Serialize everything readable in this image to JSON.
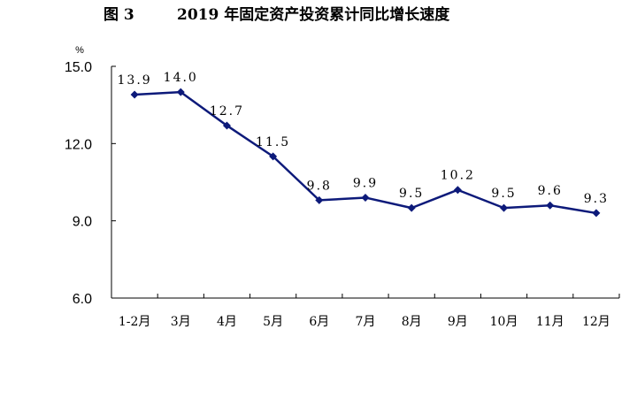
{
  "figure": {
    "label": "图 3",
    "title": "2019 年固定资产投资累计同比增长速度"
  },
  "chart_data": {
    "type": "line",
    "title": "2019 年固定资产投资累计同比增长速度",
    "ylabel": "%",
    "xlabel": "",
    "categories": [
      "1-2月",
      "3月",
      "4月",
      "5月",
      "6月",
      "7月",
      "8月",
      "9月",
      "10月",
      "11月",
      "12月"
    ],
    "series": [
      {
        "values": [
          13.9,
          14.0,
          12.7,
          11.5,
          9.8,
          9.9,
          9.5,
          10.2,
          9.5,
          9.6,
          9.3
        ],
        "labels": [
          "13.9",
          "14.0",
          "12.7",
          "11.5",
          "9.8",
          "9.9",
          "9.5",
          "10.2",
          "9.5",
          "9.6",
          "9.3"
        ],
        "color": "#0d1a7a",
        "marker": "diamond"
      }
    ],
    "yticks": [
      "15.0",
      "12.0",
      "9.0",
      "6.0"
    ],
    "ylim": [
      6,
      15
    ],
    "grid": false,
    "legend": "none"
  }
}
